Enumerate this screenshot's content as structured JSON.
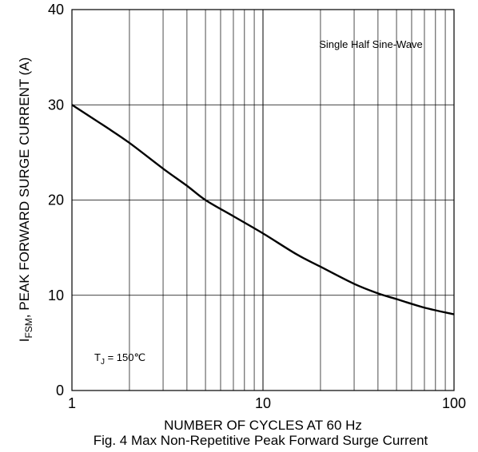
{
  "chart_data": {
    "type": "line",
    "x_scale": "log",
    "xlim": [
      1,
      100
    ],
    "ylim": [
      0,
      40
    ],
    "grid": true,
    "x_ticks": [
      1,
      10,
      100
    ],
    "x_tick_labels": [
      "1",
      "10",
      "100"
    ],
    "y_ticks": [
      0,
      10,
      20,
      30,
      40
    ],
    "y_tick_labels": [
      "0",
      "10",
      "20",
      "30",
      "40"
    ],
    "xlabel": "NUMBER OF CYCLES AT 60 Hz",
    "ylabel": {
      "main": "I",
      "subscript": "FSM",
      "rest": ", PEAK FORWARD SURGE CURRENT (A)"
    },
    "caption": "Fig. 4  Max Non-Repetitive Peak Forward Surge Current",
    "annotations": {
      "waveform": "Single Half Sine-Wave",
      "condition_main": "T",
      "condition_sub": "J",
      "condition_rest": " = 150℃"
    },
    "series": [
      {
        "x": [
          1,
          1.5,
          2,
          3,
          4,
          5,
          7,
          10,
          15,
          20,
          30,
          40,
          50,
          70,
          100
        ],
        "y": [
          30,
          27.7,
          26,
          23.3,
          21.5,
          20,
          18.3,
          16.5,
          14.3,
          13,
          11.2,
          10.2,
          9.6,
          8.7,
          8
        ]
      }
    ],
    "colors": {
      "line": "#000000",
      "grid": "#000000",
      "background": "#ffffff"
    }
  }
}
